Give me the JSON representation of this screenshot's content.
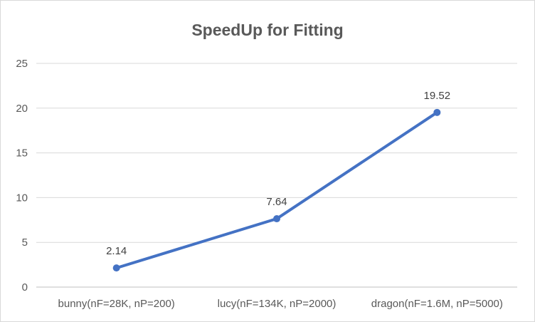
{
  "chart_data": {
    "type": "line",
    "title": "SpeedUp for Fitting",
    "xlabel": "",
    "ylabel": "",
    "categories": [
      "bunny(nF=28K, nP=200)",
      "lucy(nF=134K, nP=2000)",
      "dragon(nF=1.6M, nP=5000)"
    ],
    "series": [
      {
        "values": [
          2.14,
          7.64,
          19.52
        ],
        "labels": [
          "2.14",
          "7.64",
          "19.52"
        ],
        "color": "#4472c4"
      }
    ],
    "ylim": [
      0,
      25
    ],
    "yticks": [
      0,
      5,
      10,
      15,
      20,
      25
    ],
    "grid": true,
    "legend": "none"
  }
}
